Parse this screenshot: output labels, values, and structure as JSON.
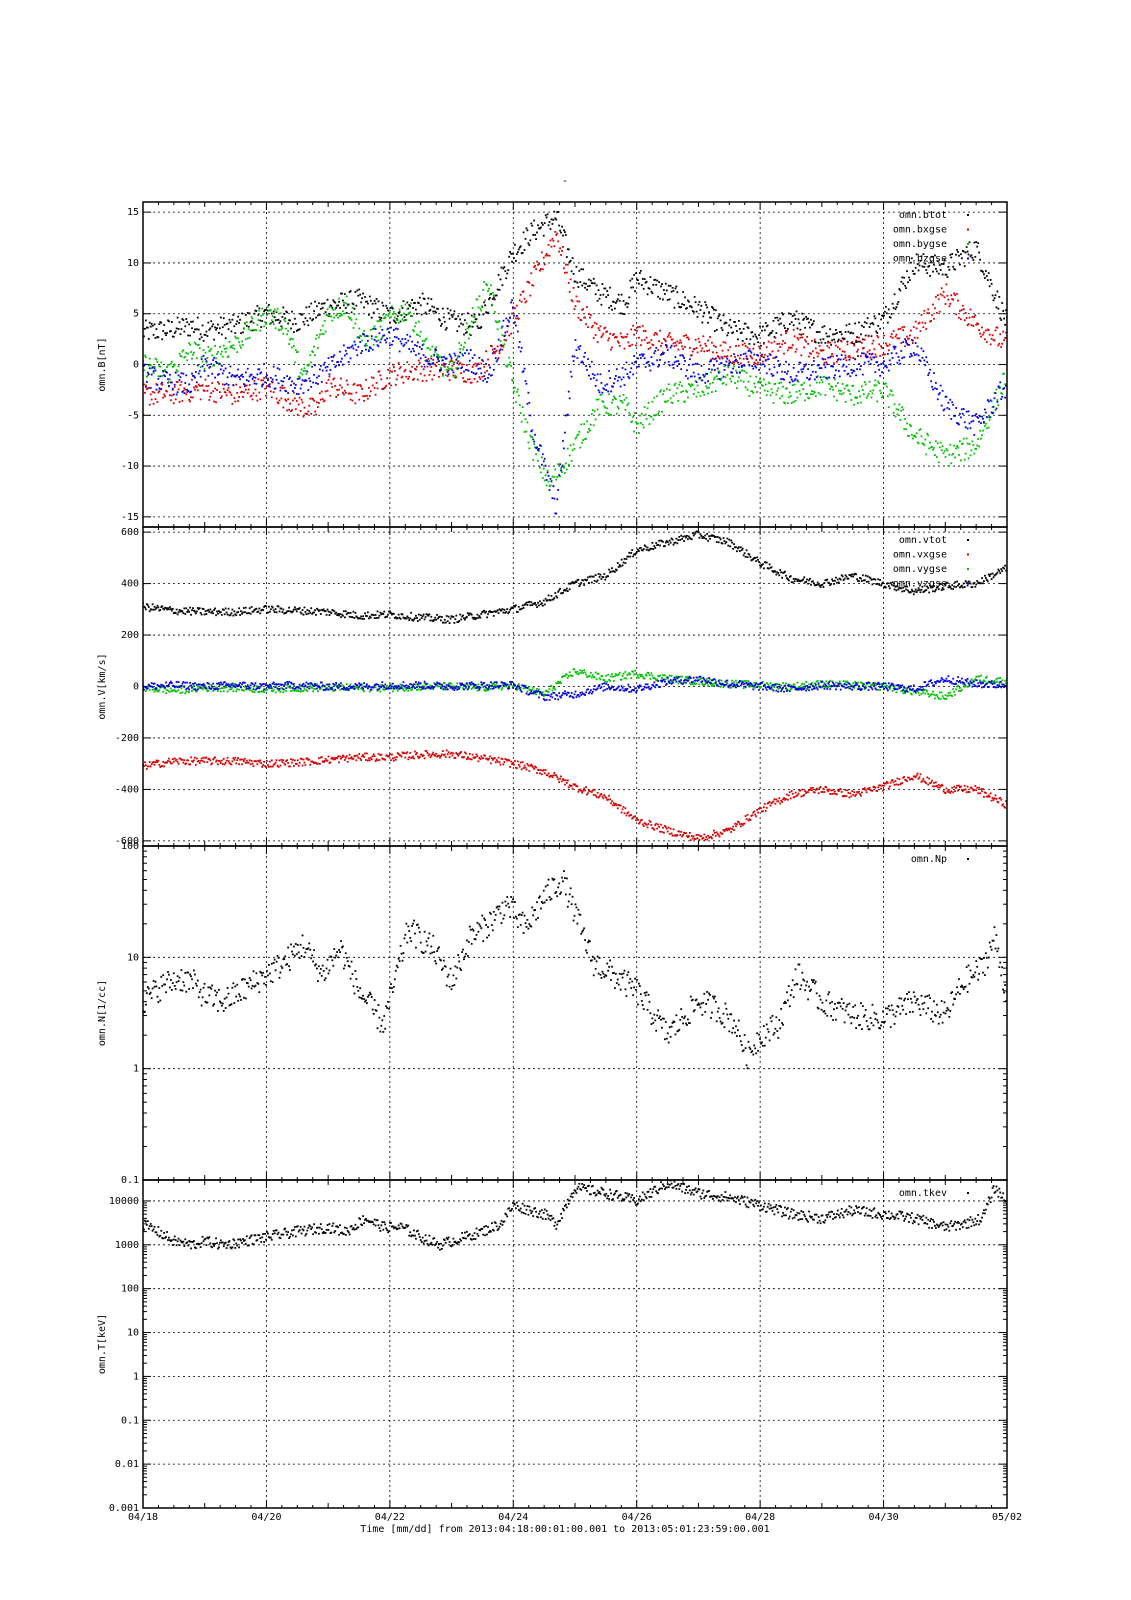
{
  "figure": {
    "title": "-",
    "footer": "Time [mm/dd]  from 2013:04:18:00:01:00.001  to  2013:05:01:23:59:00.001"
  },
  "chart_data": [
    {
      "type": "scatter",
      "ylabel": "omn.B[nT]",
      "yscale": "linear",
      "ylim": [
        -16,
        16
      ],
      "yticks": [
        -15,
        -10,
        -5,
        0,
        5,
        10,
        15
      ],
      "ytick_labels": [
        "-15",
        "-10",
        "-5",
        "0",
        "5",
        "10",
        "15"
      ],
      "xlim": [
        0,
        14
      ],
      "grid": true,
      "legend_position": "top-right",
      "series": [
        {
          "name": "omn.btot",
          "color": "#000000",
          "x": [
            0,
            0.4,
            0.8,
            1,
            1.5,
            2,
            2.5,
            3,
            3.5,
            4,
            4.5,
            5,
            5.4,
            5.8,
            6,
            6.3,
            6.7,
            7,
            7.4,
            7.8,
            8,
            8.5,
            9,
            9.5,
            10,
            10.5,
            11,
            11.5,
            12,
            12.5,
            13,
            13.5,
            14
          ],
          "y": [
            3.2,
            3.4,
            3.8,
            3.4,
            3.8,
            5,
            4.2,
            5.8,
            6.3,
            4.8,
            6,
            4.2,
            3.8,
            8.5,
            11,
            13,
            14.5,
            9,
            7,
            6,
            8.5,
            7,
            5.5,
            3.4,
            2.8,
            4.5,
            3,
            3,
            4.4,
            10,
            9.5,
            11.5,
            4
          ]
        },
        {
          "name": "omn.bxgse",
          "color": "#d40000",
          "x": [
            0,
            0.5,
            1,
            1.5,
            2,
            2.5,
            2.8,
            3,
            3.5,
            4,
            4.5,
            5,
            5.4,
            5.8,
            6,
            6.3,
            6.7,
            7,
            7.4,
            7.8,
            8,
            8.5,
            9,
            9.5,
            10,
            10.5,
            11,
            11.5,
            12,
            12.5,
            13,
            13.5,
            14
          ],
          "y": [
            -3,
            -2.8,
            -2.4,
            -3,
            -2.2,
            -4,
            -4.5,
            -2,
            -3,
            -1,
            -0.5,
            -0.5,
            -0.8,
            2,
            4.5,
            8,
            13,
            6,
            3,
            2,
            3,
            2,
            2,
            1,
            1,
            2.5,
            1,
            1.5,
            2,
            3,
            7,
            4,
            2
          ]
        },
        {
          "name": "omn.bygse",
          "color": "#00c000",
          "x": [
            0,
            0.4,
            0.8,
            1,
            1.5,
            2,
            2.3,
            2.6,
            3,
            3.3,
            3.6,
            4,
            4.3,
            4.6,
            5,
            5.3,
            5.6,
            6,
            6.3,
            6.6,
            7,
            7.4,
            7.8,
            8,
            8.5,
            9,
            9.5,
            10,
            10.5,
            11,
            11.5,
            12,
            12.5,
            13,
            13.5,
            14
          ],
          "y": [
            0,
            -0.8,
            1.5,
            0.5,
            2,
            5,
            4,
            -1.5,
            5,
            6,
            2,
            4.5,
            5.5,
            1.5,
            -1,
            4,
            8,
            -2,
            -8,
            -12,
            -8,
            -4,
            -4,
            -6,
            -3,
            -2.5,
            -1,
            -2.5,
            -3,
            -2,
            -3,
            -2.5,
            -7,
            -9,
            -8,
            -1
          ]
        },
        {
          "name": "omn.bzgse",
          "color": "#0000e0",
          "x": [
            0,
            0.4,
            0.8,
            1,
            1.5,
            2,
            2.5,
            3,
            3.5,
            4,
            4.5,
            5,
            5.3,
            5.6,
            6,
            6.3,
            6.7,
            7,
            7.4,
            7.8,
            8,
            8.5,
            9,
            9.5,
            10,
            10.5,
            11,
            11.5,
            12,
            12.5,
            13,
            13.5,
            14
          ],
          "y": [
            -1,
            -1.8,
            -2,
            0,
            -1.5,
            -1,
            -2,
            -0.5,
            2,
            3,
            1,
            0,
            0.5,
            -1,
            6,
            -6,
            -14,
            2,
            -2,
            -1,
            0,
            1,
            -1,
            0,
            0.5,
            -1,
            -0.5,
            0,
            0,
            2,
            -4,
            -6,
            -2
          ]
        }
      ]
    },
    {
      "type": "scatter",
      "ylabel": "omn.V[km/s]",
      "yscale": "linear",
      "ylim": [
        -620,
        620
      ],
      "yticks": [
        -600,
        -400,
        -200,
        0,
        200,
        400,
        600
      ],
      "ytick_labels": [
        "-600",
        "-400",
        "-200",
        "0",
        "200",
        "400",
        "600"
      ],
      "xlim": [
        0,
        14
      ],
      "grid": true,
      "legend_position": "top-right",
      "series": [
        {
          "name": "omn.vtot",
          "color": "#000000",
          "x": [
            0,
            0.5,
            1,
            1.5,
            2,
            2.5,
            3,
            3.5,
            4,
            4.5,
            5,
            5.5,
            6,
            6.5,
            7,
            7.5,
            8,
            8.5,
            9,
            9.5,
            10,
            10.5,
            11,
            11.5,
            12,
            12.5,
            13,
            13.5,
            14
          ],
          "y": [
            310,
            295,
            290,
            290,
            300,
            295,
            290,
            275,
            280,
            268,
            260,
            280,
            300,
            330,
            400,
            430,
            530,
            560,
            590,
            560,
            480,
            420,
            400,
            430,
            400,
            370,
            390,
            400,
            460
          ]
        },
        {
          "name": "omn.vxgse",
          "color": "#d40000",
          "x": [
            0,
            0.5,
            1,
            1.5,
            2,
            2.5,
            3,
            3.5,
            4,
            4.5,
            5,
            5.5,
            6,
            6.5,
            7,
            7.5,
            8,
            8.5,
            9,
            9.5,
            10,
            10.5,
            11,
            11.5,
            12,
            12.5,
            13,
            13.5,
            14
          ],
          "y": [
            -310,
            -290,
            -290,
            -290,
            -300,
            -295,
            -285,
            -275,
            -275,
            -265,
            -262,
            -280,
            -300,
            -330,
            -390,
            -430,
            -520,
            -560,
            -590,
            -560,
            -480,
            -420,
            -400,
            -420,
            -390,
            -345,
            -400,
            -400,
            -460
          ]
        },
        {
          "name": "omn.vygse",
          "color": "#00c000",
          "x": [
            0,
            0.5,
            1,
            1.5,
            2,
            2.5,
            3,
            3.5,
            4,
            4.5,
            5,
            5.5,
            6,
            6.5,
            7,
            7.5,
            8,
            8.5,
            9,
            9.5,
            10,
            10.5,
            11,
            11.5,
            12,
            12.5,
            13,
            13.5,
            14
          ],
          "y": [
            -5,
            -15,
            -5,
            -5,
            -10,
            -5,
            -5,
            -5,
            -5,
            0,
            0,
            -5,
            5,
            -30,
            60,
            30,
            50,
            30,
            20,
            10,
            5,
            0,
            10,
            5,
            0,
            -20,
            -40,
            30,
            20
          ]
        },
        {
          "name": "omn.vzgse",
          "color": "#0000e0",
          "x": [
            0,
            0.5,
            1,
            1.5,
            2,
            2.5,
            3,
            3.5,
            4,
            4.5,
            5,
            5.5,
            6,
            6.5,
            7,
            7.5,
            8,
            8.5,
            9,
            9.5,
            10,
            10.5,
            11,
            11.5,
            12,
            12.5,
            13,
            13.5,
            14
          ],
          "y": [
            0,
            5,
            0,
            5,
            0,
            5,
            0,
            0,
            5,
            5,
            0,
            5,
            5,
            -40,
            -30,
            0,
            -10,
            20,
            30,
            10,
            0,
            -10,
            5,
            0,
            0,
            -10,
            30,
            10,
            5
          ]
        }
      ]
    },
    {
      "type": "scatter",
      "ylabel": "omn.N[1/cc]",
      "yscale": "log",
      "ylim": [
        0.1,
        100
      ],
      "yticks": [
        0.1,
        1,
        10,
        100
      ],
      "ytick_labels": [
        "0.1",
        "1",
        "10",
        "100"
      ],
      "xlim": [
        0,
        14
      ],
      "grid": true,
      "legend_position": "top-right",
      "series": [
        {
          "name": "omn.Np",
          "color": "#000000",
          "x": [
            0,
            0.3,
            0.6,
            0.8,
            1,
            1.3,
            1.6,
            2,
            2.3,
            2.6,
            2.9,
            3.2,
            3.5,
            3.7,
            3.9,
            4.3,
            4.7,
            5,
            5.3,
            5.6,
            5.9,
            6.2,
            6.5,
            6.8,
            7,
            7.3,
            7.6,
            8,
            8.5,
            9,
            9.3,
            9.6,
            9.8,
            10,
            10.3,
            10.6,
            11,
            11.5,
            12,
            12.5,
            13,
            13.3,
            13.6,
            13.8,
            14
          ],
          "y": [
            4,
            5.5,
            6.5,
            6,
            4.5,
            4,
            5,
            7,
            9,
            13,
            7,
            12,
            5,
            3.5,
            2.5,
            18,
            12,
            6,
            15,
            20,
            30,
            18,
            35,
            50,
            25,
            9,
            7,
            5,
            2,
            4,
            3.5,
            2.5,
            1.3,
            2,
            2.5,
            7,
            4,
            3,
            2.8,
            4,
            3,
            6,
            8,
            15,
            4.5
          ]
        }
      ]
    },
    {
      "type": "scatter",
      "ylabel": "omn.T[keV]",
      "yscale": "log",
      "ylim": [
        0.001,
        30000
      ],
      "yticks": [
        0.001,
        0.01,
        0.1,
        1,
        10,
        100,
        1000,
        10000
      ],
      "ytick_labels": [
        "0.001",
        "0.01",
        "0.1",
        "1",
        "10",
        "100",
        "1000",
        "10000"
      ],
      "xlim": [
        0,
        14
      ],
      "grid": true,
      "legend_position": "top-right",
      "series": [
        {
          "name": "omn.tkev",
          "color": "#000000",
          "x": [
            0,
            0.3,
            0.5,
            0.8,
            1,
            1.3,
            1.5,
            2,
            2.5,
            3,
            3.3,
            3.6,
            3.9,
            4.2,
            4.5,
            4.8,
            5,
            5.5,
            5.8,
            6,
            6.3,
            6.5,
            6.7,
            7,
            7.5,
            8,
            8.5,
            9,
            9.5,
            10,
            10.5,
            11,
            11.5,
            12,
            12.5,
            13,
            13.3,
            13.6,
            13.8,
            14
          ],
          "y": [
            3000,
            1800,
            1200,
            1000,
            1200,
            1000,
            1100,
            1500,
            2000,
            2500,
            2000,
            4000,
            2500,
            2500,
            1500,
            1000,
            1200,
            2000,
            3000,
            8000,
            6000,
            5000,
            3000,
            20000,
            15000,
            10000,
            25000,
            15000,
            12000,
            8000,
            5000,
            4000,
            6000,
            5000,
            4000,
            2500,
            3000,
            4000,
            20000,
            10000
          ]
        }
      ]
    }
  ],
  "x_axis": {
    "tick_labels": [
      "04/18",
      "04/20",
      "04/22",
      "04/24",
      "04/26",
      "04/28",
      "04/30",
      "05/02"
    ]
  }
}
